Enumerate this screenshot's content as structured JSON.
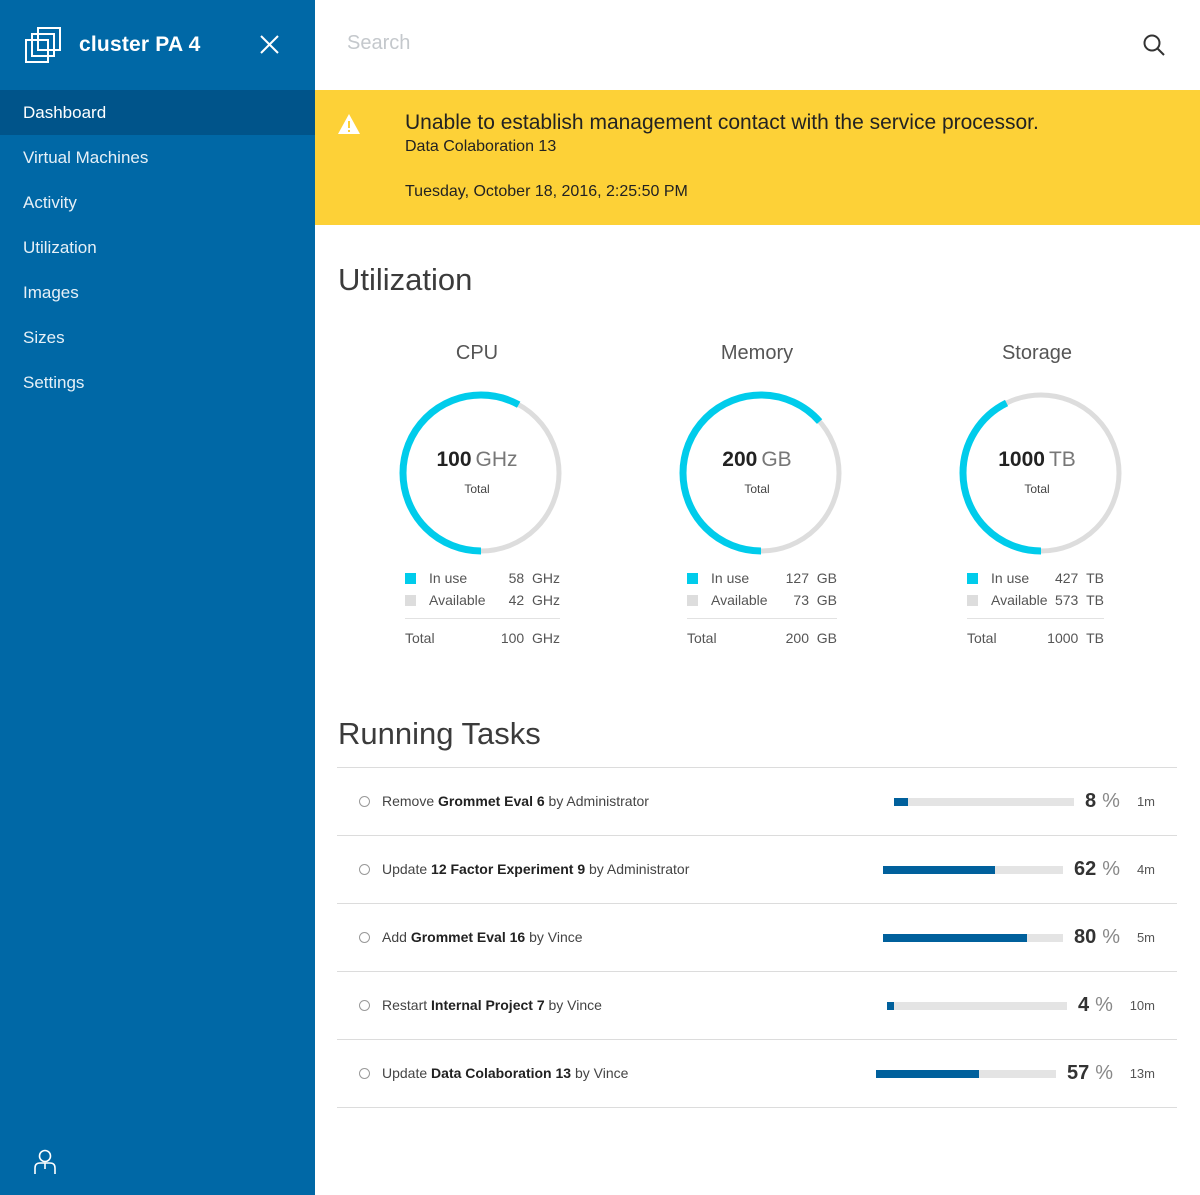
{
  "sidebar": {
    "title": "cluster PA 4",
    "nav": [
      {
        "label": "Dashboard",
        "active": true
      },
      {
        "label": "Virtual Machines",
        "active": false
      },
      {
        "label": "Activity",
        "active": false
      },
      {
        "label": "Utilization",
        "active": false
      },
      {
        "label": "Images",
        "active": false
      },
      {
        "label": "Sizes",
        "active": false
      },
      {
        "label": "Settings",
        "active": false
      }
    ]
  },
  "search": {
    "placeholder": "Search"
  },
  "alert": {
    "title": "Unable to establish management contact with the service processor.",
    "source": "Data Colaboration 13",
    "time": "Tuesday, October 18, 2016, 2:25:50 PM"
  },
  "utilization": {
    "title": "Utilization",
    "total_caption": "Total",
    "in_use_label": "In use",
    "available_label": "Available",
    "total_label": "Total",
    "gauges": [
      {
        "label": "CPU",
        "total": "100",
        "unit": "GHz",
        "in_use": "58",
        "available": "42",
        "in_use_fraction": 0.58
      },
      {
        "label": "Memory",
        "total": "200",
        "unit": "GB",
        "in_use": "127",
        "available": "73",
        "in_use_fraction": 0.635
      },
      {
        "label": "Storage",
        "total": "1000",
        "unit": "TB",
        "in_use": "427",
        "available": "573",
        "in_use_fraction": 0.427
      }
    ]
  },
  "tasks": {
    "title": "Running Tasks",
    "items": [
      {
        "action": "Remove",
        "target": "Grommet Eval 6",
        "by": "by Administrator",
        "percent": "8",
        "time": "1m"
      },
      {
        "action": "Update",
        "target": "12 Factor Experiment 9",
        "by": "by Administrator",
        "percent": "62",
        "time": "4m"
      },
      {
        "action": "Add",
        "target": "Grommet Eval 16",
        "by": "by Vince",
        "percent": "80",
        "time": "5m"
      },
      {
        "action": "Restart",
        "target": "Internal Project 7",
        "by": "by Vince",
        "percent": "4",
        "time": "10m"
      },
      {
        "action": "Update",
        "target": "Data Colaboration 13",
        "by": "by Vince",
        "percent": "57",
        "time": "13m"
      }
    ],
    "percent_sign": "%"
  },
  "colors": {
    "sidebar": "#0068a6",
    "sidebar_active": "#00548a",
    "alert": "#fdd137",
    "gauge_in_use": "#00ccEB",
    "gauge_available": "#dddddd",
    "task_bar": "#00609c"
  }
}
